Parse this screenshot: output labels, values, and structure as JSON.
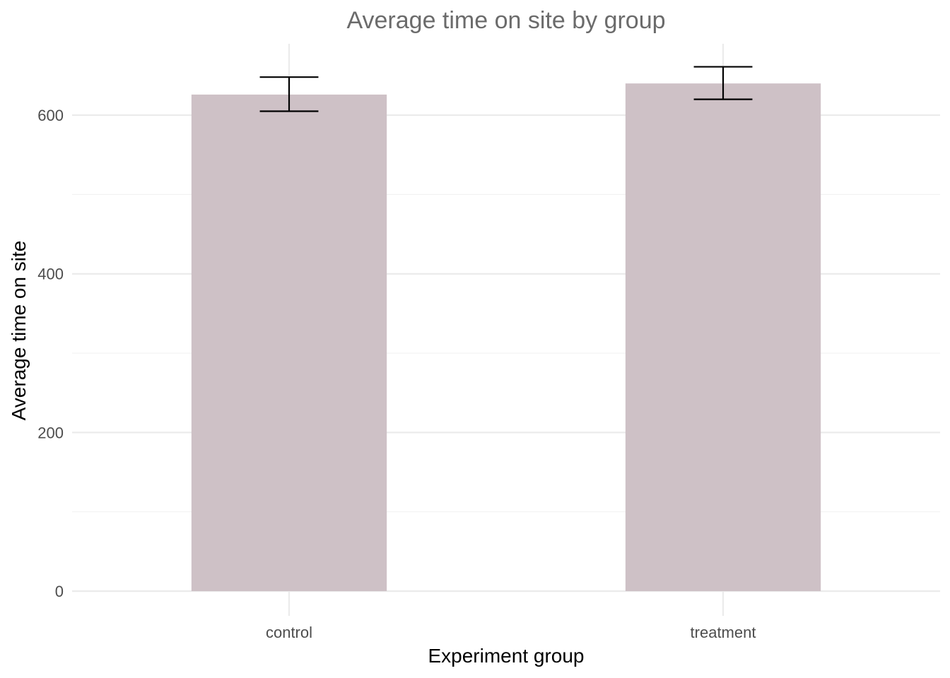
{
  "chart_data": {
    "type": "bar",
    "title": "Average time on site by group",
    "xlabel": "Experiment group",
    "ylabel": "Average time on site",
    "categories": [
      "control",
      "treatment"
    ],
    "values": [
      626,
      640
    ],
    "error_low": [
      605,
      620
    ],
    "error_high": [
      648,
      661
    ],
    "ylim": [
      0,
      690
    ],
    "yticks": [
      0,
      200,
      400,
      600
    ],
    "ytick_labels": [
      "0",
      "200",
      "400",
      "600"
    ],
    "grid": true,
    "legend": "none",
    "colors": {
      "bar": "#cec1c6",
      "errorbar": "#000000"
    }
  }
}
